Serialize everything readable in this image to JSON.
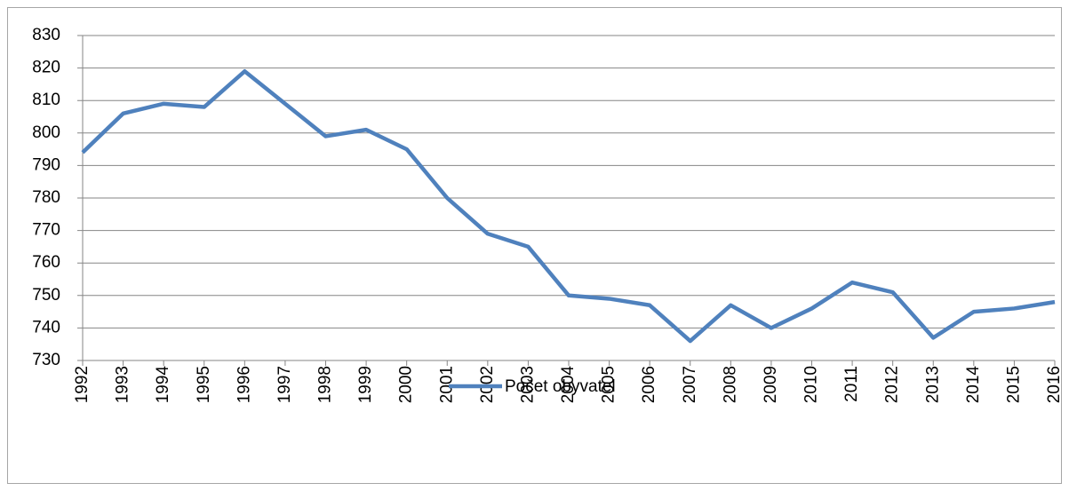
{
  "chart_data": {
    "type": "line",
    "categories": [
      "1992",
      "1993",
      "1994",
      "1995",
      "1996",
      "1997",
      "1998",
      "1999",
      "2000",
      "2001",
      "2002",
      "2003",
      "2004",
      "2005",
      "2006",
      "2007",
      "2008",
      "2009",
      "2010",
      "2011",
      "2012",
      "2013",
      "2014",
      "2015",
      "2016"
    ],
    "series": [
      {
        "name": "Počet obyvatel",
        "color": "#4f81bd",
        "values": [
          794,
          806,
          809,
          808,
          819,
          809,
          799,
          801,
          795,
          780,
          769,
          765,
          750,
          749,
          747,
          736,
          747,
          740,
          746,
          754,
          751,
          737,
          745,
          746,
          748
        ]
      }
    ],
    "ylim": [
      730,
      830
    ],
    "yticks": [
      730,
      740,
      750,
      760,
      770,
      780,
      790,
      800,
      810,
      820,
      830
    ],
    "grid": true,
    "legend": "bottom"
  }
}
